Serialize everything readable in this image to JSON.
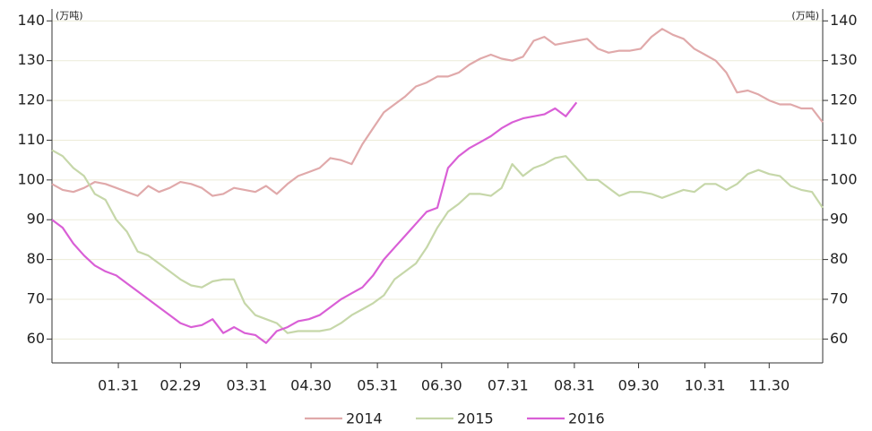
{
  "chart_data": {
    "type": "line",
    "y_unit": "(万吨)",
    "y2_unit": "(万吨)",
    "x": [
      0,
      5,
      10,
      15,
      20,
      25,
      30,
      35,
      40,
      45,
      50,
      55,
      60,
      65,
      70,
      75,
      80,
      85,
      90,
      95,
      100,
      105,
      110,
      115,
      120,
      125,
      130,
      135,
      140,
      145,
      150,
      155,
      160,
      165,
      170,
      175,
      180,
      185,
      190,
      195,
      200,
      205,
      210,
      215,
      220,
      225,
      230,
      235,
      240,
      245,
      250,
      255,
      260,
      265,
      270,
      275,
      280,
      285,
      290,
      295,
      300,
      305,
      310,
      315,
      320,
      325,
      330,
      335,
      340,
      345,
      350,
      355,
      360
    ],
    "xlim": [
      0,
      360
    ],
    "xticks": [
      {
        "value": 31,
        "label": "01.31"
      },
      {
        "value": 60,
        "label": "02.29"
      },
      {
        "value": 91,
        "label": "03.31"
      },
      {
        "value": 121,
        "label": "04.30"
      },
      {
        "value": 152,
        "label": "05.31"
      },
      {
        "value": 182,
        "label": "06.30"
      },
      {
        "value": 213,
        "label": "07.31"
      },
      {
        "value": 244,
        "label": "08.31"
      },
      {
        "value": 274,
        "label": "09.30"
      },
      {
        "value": 305,
        "label": "10.31"
      },
      {
        "value": 335,
        "label": "11.30"
      }
    ],
    "ylim": [
      54,
      143
    ],
    "yticks": [
      60,
      70,
      80,
      90,
      100,
      110,
      120,
      130,
      140
    ],
    "y2lim": [
      54,
      143
    ],
    "y2ticks": [
      60,
      70,
      80,
      90,
      100,
      110,
      120,
      130,
      140
    ],
    "grid": true,
    "series": [
      {
        "name": "2014",
        "color": "#e0a9aa",
        "values": [
          99,
          97.5,
          97,
          98,
          99.5,
          99,
          98,
          97,
          96,
          98.5,
          97,
          98,
          99.5,
          99,
          98,
          96,
          96.5,
          98,
          97.5,
          97,
          98.5,
          96.5,
          99,
          101,
          102,
          103,
          105.5,
          105,
          104,
          109,
          113,
          117,
          119,
          121,
          123.5,
          124.5,
          126,
          126,
          127,
          129,
          130.5,
          131.5,
          130.5,
          130,
          131,
          135,
          136,
          134,
          134.5,
          135,
          135.5,
          133,
          132,
          132.5,
          132.5,
          133,
          136,
          138,
          136.5,
          135.5,
          133,
          131.5,
          130,
          127,
          122,
          122.5,
          121.5,
          120,
          119,
          119,
          118,
          118,
          114.5
        ]
      },
      {
        "name": "2015",
        "color": "#c6d7a9",
        "values": [
          107.5,
          106,
          103,
          101,
          96.5,
          95,
          90,
          87,
          82,
          81,
          79,
          77,
          75,
          73.5,
          73,
          74.5,
          75,
          75,
          69,
          66,
          65,
          64,
          61.5,
          62,
          62,
          62,
          62.5,
          64,
          66,
          67.5,
          69,
          71,
          75,
          77,
          79,
          83,
          88,
          92,
          94,
          96.5,
          96.5,
          96,
          98,
          104,
          101,
          103,
          104,
          105.5,
          106,
          103,
          100,
          100,
          98,
          96,
          97,
          97,
          96.5,
          95.5,
          96.5,
          97.5,
          97,
          99,
          99,
          97.5,
          99,
          101.5,
          102.5,
          101.5,
          101,
          98.5,
          97.5,
          97,
          93
        ]
      },
      {
        "name": "2016",
        "color": "#d95fd6",
        "values": [
          90,
          88,
          84,
          81,
          78.5,
          77,
          76,
          74,
          72,
          70,
          68,
          66,
          64,
          63,
          63.5,
          65,
          61.5,
          63,
          61.5,
          61,
          59,
          62,
          63,
          64.5,
          65,
          66,
          68,
          70,
          71.5,
          73,
          76,
          80,
          83,
          86,
          89,
          92,
          93,
          103,
          106,
          108,
          109.5,
          111,
          113,
          114.5,
          115.5,
          116,
          116.5,
          118,
          116,
          119.5,
          null,
          null,
          null,
          null,
          null,
          null,
          null,
          null,
          null,
          null,
          null,
          null,
          null,
          null,
          null,
          null,
          null,
          null,
          null,
          null,
          null,
          null,
          null
        ]
      }
    ]
  }
}
